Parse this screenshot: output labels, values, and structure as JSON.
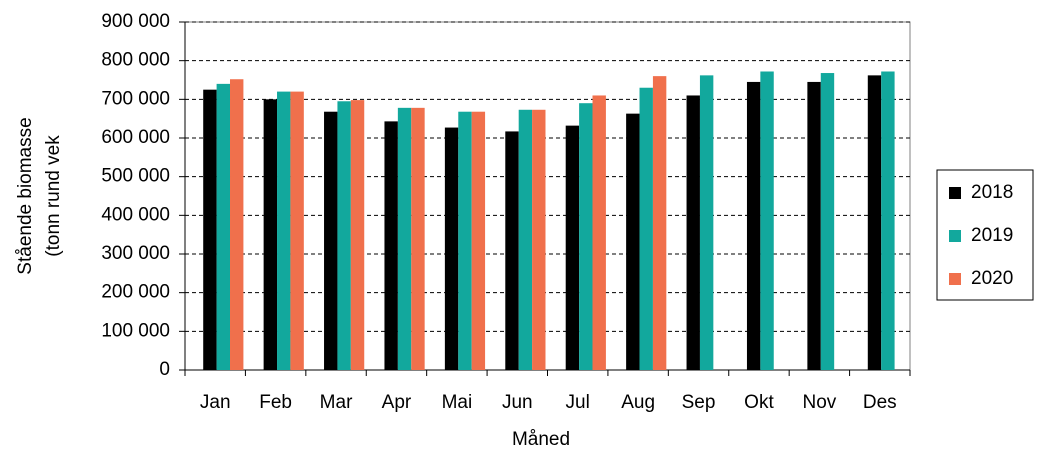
{
  "chart_data": {
    "type": "bar",
    "x_label": "Måned",
    "y_label": [
      "Stående biomasse",
      "(tonn rund vek"
    ],
    "categories": [
      "Jan",
      "Feb",
      "Mar",
      "Apr",
      "Mai",
      "Jun",
      "Jul",
      "Aug",
      "Sep",
      "Okt",
      "Nov",
      "Des"
    ],
    "series": [
      {
        "name": "2018",
        "color": "#000000",
        "values": [
          725000,
          700000,
          668000,
          643000,
          627000,
          617000,
          632000,
          663000,
          710000,
          745000,
          745000,
          762000
        ]
      },
      {
        "name": "2019",
        "color": "#12a89d",
        "values": [
          740000,
          720000,
          695000,
          678000,
          668000,
          673000,
          690000,
          730000,
          762000,
          772000,
          768000,
          772000
        ]
      },
      {
        "name": "2020",
        "color": "#f0704c",
        "values": [
          752000,
          720000,
          698000,
          678000,
          668000,
          673000,
          710000,
          760000,
          null,
          null,
          null,
          null
        ]
      }
    ],
    "ylim": [
      0,
      900000
    ],
    "yticks": [
      0,
      {
        "value": 100000,
        "label": "100 000"
      },
      {
        "value": 200000,
        "label": "200 000"
      },
      {
        "value": 300000,
        "label": "300 000"
      },
      {
        "value": 400000,
        "label": "400 000"
      },
      {
        "value": 500000,
        "label": "500 000"
      },
      {
        "value": 600000,
        "label": "600 000"
      },
      {
        "value": 700000,
        "label": "700 000"
      },
      {
        "value": 800000,
        "label": "800 000"
      },
      {
        "value": 900000,
        "label": "900 000"
      }
    ],
    "grid": true,
    "legend": "right"
  }
}
